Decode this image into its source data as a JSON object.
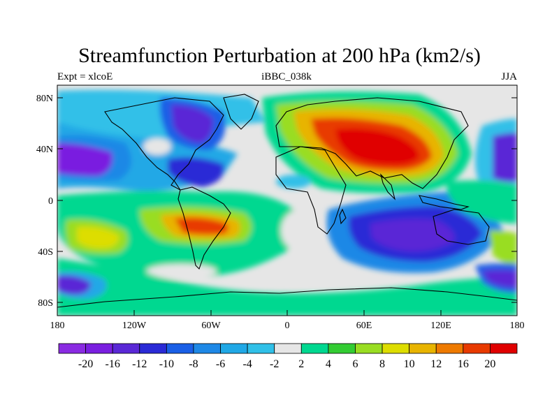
{
  "title": "Streamfunction Perturbation at 200 hPa (km2/s)",
  "left_label": "Expt = xlcoE",
  "center_label": "iBBC_038k",
  "right_label": "JJA",
  "lat_labels": [
    "80N",
    "40N",
    "0",
    "40S",
    "80S"
  ],
  "lon_labels": [
    "180",
    "120W",
    "60W",
    "0",
    "60E",
    "120E",
    "180"
  ],
  "colorbar": {
    "labels": [
      "-20",
      "-16",
      "-12",
      "-10",
      "-8",
      "-6",
      "-4",
      "-2",
      "2",
      "4",
      "6",
      "8",
      "10",
      "12",
      "16",
      "20"
    ],
    "colors": [
      "#8a2be2",
      "#7a1fe0",
      "#5a28d6",
      "#2a2ad6",
      "#1a5fe6",
      "#1e88e6",
      "#20a8e6",
      "#30c0e8",
      "#e6e6e6",
      "#00d890",
      "#33cc33",
      "#99dd22",
      "#dddd00",
      "#e8b400",
      "#ee7a00",
      "#e83a00",
      "#e00000"
    ]
  },
  "colors": {
    "land_outline": "#000000",
    "background": "#ffffff"
  }
}
